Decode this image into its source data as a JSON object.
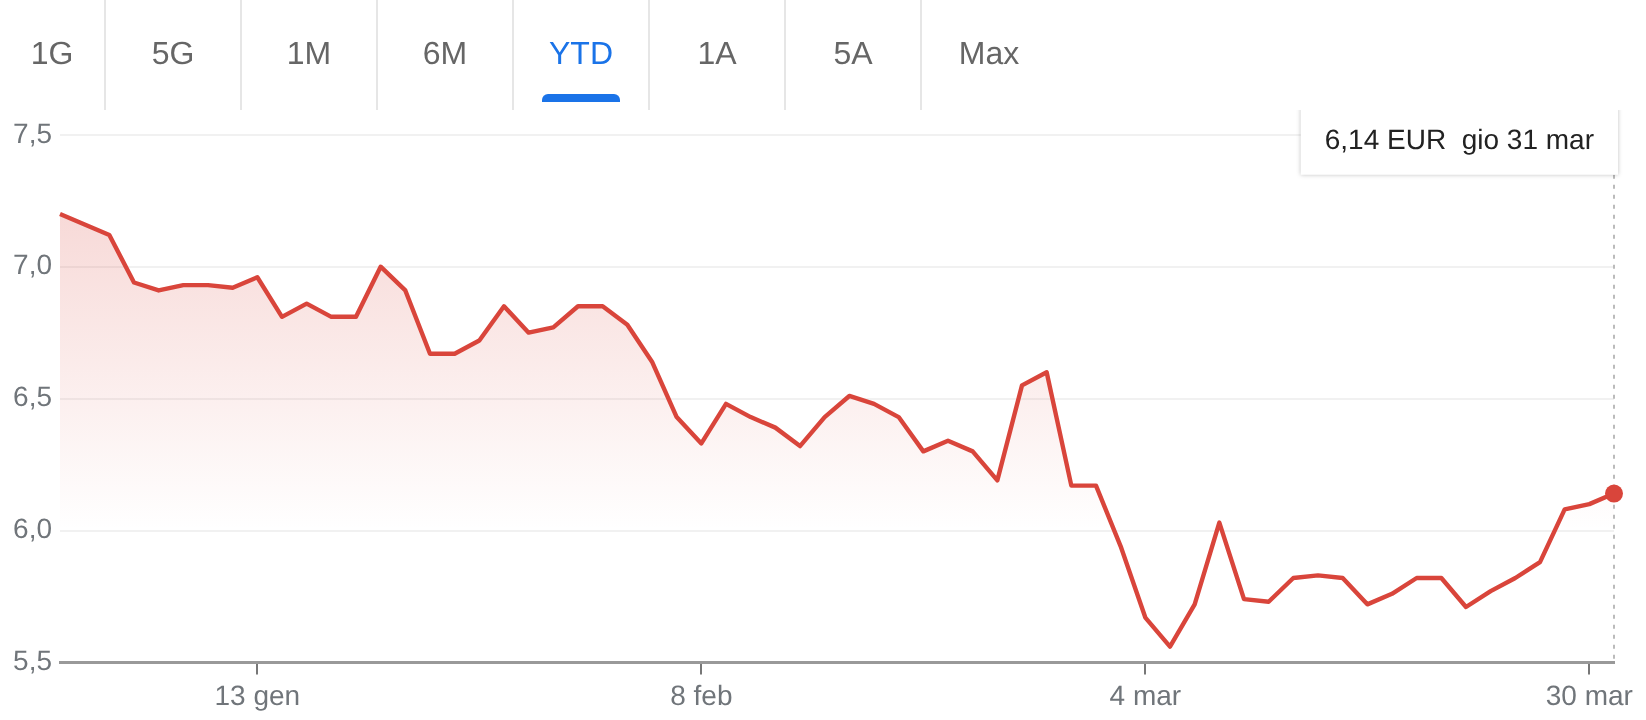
{
  "chart_data": {
    "type": "area",
    "categories": [
      null,
      null,
      null,
      null,
      null,
      null,
      null,
      null,
      "13 gen",
      null,
      null,
      null,
      null,
      null,
      null,
      null,
      null,
      null,
      null,
      null,
      null,
      null,
      null,
      null,
      null,
      null,
      "8 feb",
      null,
      null,
      null,
      null,
      null,
      null,
      null,
      null,
      null,
      null,
      null,
      null,
      null,
      null,
      null,
      null,
      null,
      "4 mar",
      null,
      null,
      null,
      null,
      null,
      null,
      null,
      null,
      null,
      null,
      null,
      null,
      null,
      null,
      null,
      null,
      null,
      "30 mar",
      null
    ],
    "series": [
      {
        "color": "#d9453b",
        "values": [
          7.2,
          7.16,
          7.12,
          6.94,
          6.91,
          6.93,
          6.93,
          6.92,
          6.96,
          6.81,
          6.86,
          6.81,
          6.81,
          7.0,
          6.91,
          6.67,
          6.67,
          6.72,
          6.85,
          6.75,
          6.77,
          6.85,
          6.85,
          6.78,
          6.64,
          6.43,
          6.33,
          6.48,
          6.43,
          6.39,
          6.32,
          6.43,
          6.51,
          6.48,
          6.43,
          6.3,
          6.34,
          6.3,
          6.19,
          6.55,
          6.6,
          6.17,
          6.17,
          5.94,
          5.67,
          5.56,
          5.72,
          6.03,
          5.74,
          5.73,
          5.82,
          5.83,
          5.82,
          5.72,
          5.76,
          5.82,
          5.82,
          5.71,
          5.77,
          5.82,
          5.88,
          6.08,
          6.1,
          6.14
        ]
      }
    ],
    "ylim": [
      5.5,
      7.5
    ],
    "yticks": [
      {
        "value": 5.5,
        "label": "5,5"
      },
      {
        "value": 6.0,
        "label": "6,0"
      },
      {
        "value": 6.5,
        "label": "6,5"
      },
      {
        "value": 7.0,
        "label": "7,0"
      },
      {
        "value": 7.5,
        "label": "7,5"
      }
    ],
    "grid": "y",
    "legend": false,
    "marker": "none",
    "line_style": "solid",
    "annotations": [
      "1G",
      "5G",
      "1M",
      "6M",
      "YTD",
      "1A",
      "5A",
      "Max",
      "6,14 EUR  gio 31 mar"
    ]
  }
}
